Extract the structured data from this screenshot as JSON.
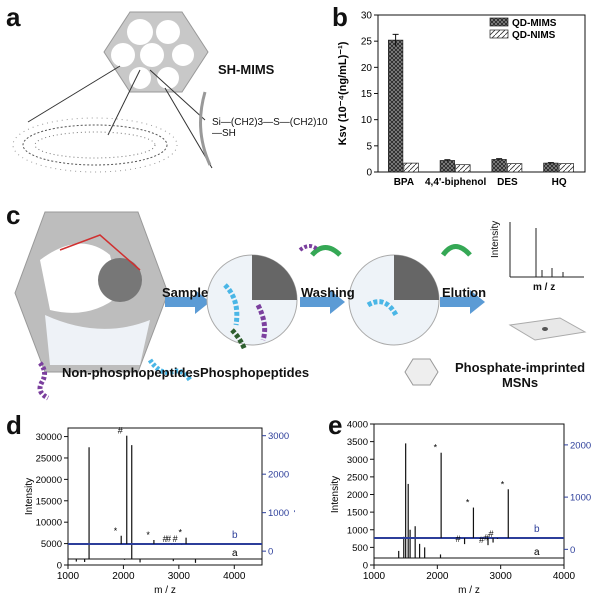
{
  "panels": {
    "a": {
      "label": "a",
      "title": "SH-MIMS",
      "formula": "Si—(CH2)3—S—(CH2)10—SH"
    },
    "b": {
      "label": "b",
      "legend": [
        "QD-MIMS",
        "QD-NIMS"
      ],
      "ylabel": "Ksv (10⁻⁴(ng/mL)⁻¹)",
      "chart_data": {
        "type": "bar",
        "categories": [
          "BPA",
          "4,4'-biphenol",
          "DES",
          "HQ"
        ],
        "series": [
          {
            "name": "QD-MIMS",
            "values": [
              25.2,
              2.2,
              2.4,
              1.7
            ]
          },
          {
            "name": "QD-NIMS",
            "values": [
              1.7,
              1.4,
              1.6,
              1.6
            ]
          }
        ],
        "error": [
          1.1,
          0.15,
          0.15,
          0.1
        ],
        "ylim": [
          0,
          30
        ],
        "yticks": [
          0,
          5,
          10,
          15,
          20,
          25,
          30
        ],
        "ylabel": "Ksv (10⁻⁴(ng/mL)⁻¹)"
      }
    },
    "c": {
      "label": "c",
      "steps": [
        "Sample",
        "Washing",
        "Elution"
      ],
      "spectrum_ylabel": "Intensity",
      "spectrum_xlabel": "m / z",
      "legend": [
        "Non-phosphopeptides",
        "Phosphopeptides",
        "Phosphate-imprinted MSNs"
      ]
    },
    "d": {
      "label": "d",
      "chart_data": {
        "type": "line",
        "xlabel": "m / z",
        "ylabel_left": "Intensity",
        "ylabel_right": "intensity",
        "xlim": [
          1000,
          4500
        ],
        "xticks": [
          1000,
          2000,
          3000,
          4000
        ],
        "ylim_left": [
          0,
          32000
        ],
        "yticks_left": [
          0,
          5000,
          10000,
          15000,
          20000,
          25000,
          30000
        ],
        "ylim_right": [
          -360,
          3200
        ],
        "yticks_right": [
          0,
          1000,
          2000,
          3000
        ],
        "series": [
          {
            "name": "a",
            "peaks_x": [
              1150,
              1300,
              1380,
              2020,
              2150,
              2300,
              2900,
              3300
            ],
            "peaks_y": [
              800,
              700,
              27500,
              1200,
              28000,
              600,
              900,
              500
            ]
          },
          {
            "name": "b",
            "peaks_x": [
              1960,
              2060,
              2550,
              2870,
              2930,
              3050,
              3130
            ],
            "peaks_y": [
              400,
              3000,
              290,
              180,
              180,
              180,
              350
            ]
          }
        ],
        "markers": [
          "*",
          "#",
          "*",
          "#",
          "#",
          "#",
          "*"
        ]
      }
    },
    "e": {
      "label": "e",
      "chart_data": {
        "type": "line",
        "xlabel": "m / z",
        "ylabel_left": "Intensity",
        "xlim": [
          1000,
          4000
        ],
        "xticks": [
          1000,
          2000,
          3000,
          4000
        ],
        "ylim_left": [
          0,
          4000
        ],
        "yticks_left": [
          0,
          500,
          1000,
          1500,
          2000,
          2500,
          3000,
          3500,
          4000
        ],
        "ylim_right": [
          -300,
          2400
        ],
        "yticks_right": [
          0,
          1000,
          2000
        ],
        "series": [
          {
            "name": "a",
            "peaks_x": [
              1390,
              1470,
              1500,
              1540,
              1570,
              1650,
              1720,
              1800,
              2050
            ],
            "peaks_y": [
              400,
              800,
              3450,
              2300,
              1000,
              1100,
              600,
              500,
              300
            ]
          },
          {
            "name": "b",
            "peaks_x": [
              2060,
              2430,
              2570,
              2800,
              2880,
              2950,
              3120
            ],
            "peaks_y": [
              1850,
              100,
              800,
              80,
              130,
              200,
              1150
            ]
          }
        ],
        "markers": [
          "*",
          "#",
          "*",
          "#",
          "#",
          "#",
          "*"
        ]
      }
    }
  }
}
